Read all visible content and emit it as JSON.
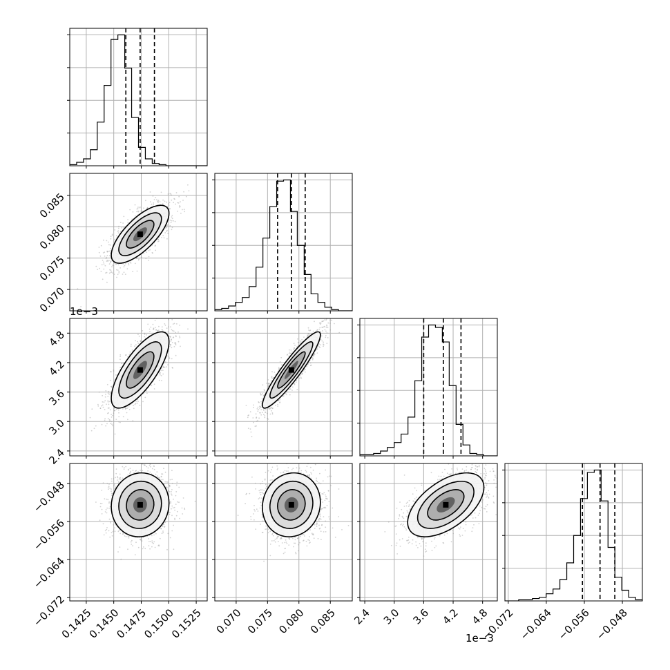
{
  "chart_data": {
    "type": "corner",
    "parameters": [
      {
        "ticks": [
          0.1425,
          0.145,
          0.1475,
          0.15,
          0.1525
        ],
        "tick_labels": [
          "0.1425",
          "0.1450",
          "0.1475",
          "0.1500",
          "0.1525"
        ],
        "lim": [
          0.141,
          0.1535
        ],
        "mean": 0.1474,
        "sigma": 0.00125,
        "quantiles": [
          0.1461,
          0.1474,
          0.1487
        ],
        "offset_label": "",
        "hist_counts": [
          1,
          3,
          6,
          14,
          38,
          70,
          110,
          114,
          85,
          42,
          16,
          6,
          2,
          1,
          0,
          0,
          0,
          0,
          0,
          0
        ]
      },
      {
        "ticks": [
          0.07,
          0.075,
          0.08,
          0.085
        ],
        "tick_labels": [
          "0.070",
          "0.075",
          "0.080",
          "0.085"
        ],
        "lim": [
          0.0666,
          0.0885
        ],
        "mean": 0.0788,
        "sigma": 0.0022,
        "quantiles": [
          0.0766,
          0.0788,
          0.081
        ],
        "offset_label": "",
        "hist_counts": [
          1,
          2,
          4,
          7,
          11,
          20,
          36,
          60,
          86,
          107,
          108,
          82,
          54,
          30,
          14,
          7,
          3,
          1,
          0,
          0
        ]
      },
      {
        "ticks": [
          2.4,
          3.0,
          3.6,
          4.2,
          4.8
        ],
        "tick_labels": [
          "2.4",
          "3.0",
          "3.6",
          "4.2",
          "4.8"
        ],
        "lim": [
          2.3,
          5.1
        ],
        "mean": 4.05,
        "sigma": 0.37,
        "quantiles": [
          3.6,
          4.0,
          4.36
        ],
        "offset_label": "1e−3",
        "hist_counts": [
          1,
          1,
          2,
          4,
          7,
          11,
          18,
          32,
          62,
          98,
          108,
          106,
          94,
          58,
          26,
          9,
          2,
          1,
          0,
          0
        ]
      },
      {
        "ticks": [
          -0.072,
          -0.064,
          -0.056,
          -0.048
        ],
        "tick_labels": [
          "−0.072",
          "−0.064",
          "−0.056",
          "−0.048"
        ],
        "lim": [
          -0.0727,
          -0.0438
        ],
        "mean": -0.0525,
        "sigma": 0.0032,
        "quantiles": [
          -0.0564,
          -0.0527,
          -0.0496
        ],
        "offset_label": "",
        "hist_counts": [
          0,
          0,
          1,
          1,
          2,
          3,
          6,
          10,
          18,
          32,
          55,
          86,
          108,
          110,
          84,
          45,
          20,
          9,
          3,
          1
        ]
      }
    ],
    "correlations": [
      [
        1.0,
        0.72,
        0.74,
        0.05
      ],
      [
        0.72,
        1.0,
        0.92,
        0.08
      ],
      [
        0.74,
        0.92,
        1.0,
        0.55
      ],
      [
        0.05,
        0.08,
        0.55,
        1.0
      ]
    ],
    "grid": true,
    "colors": {
      "samples": "#9a9a9a",
      "contour": "#000000",
      "hist": "#000000"
    }
  }
}
